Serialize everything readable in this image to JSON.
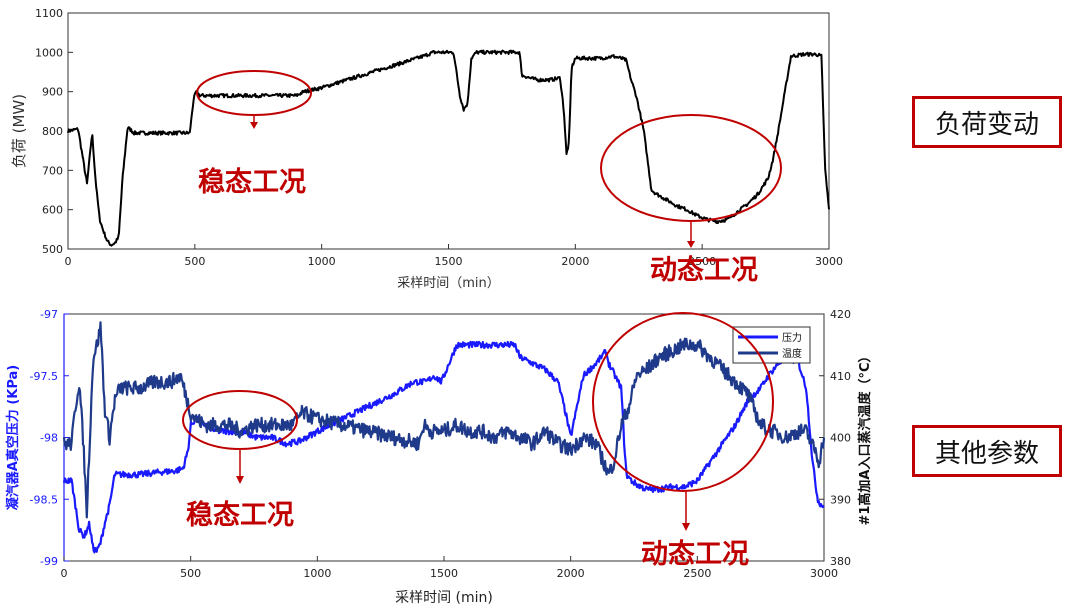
{
  "side_labels": {
    "top": "负荷变动",
    "bottom": "其他参数"
  },
  "colors": {
    "load_line": "#000000",
    "pressure_line": "#1a1aff",
    "temperature_line": "#1f3a8a",
    "annotation": "#c00000"
  },
  "chart_data": [
    {
      "type": "line",
      "ylabel": "负荷 (MW)",
      "xlabel": "采样时间（min）",
      "xlim": [
        0,
        3000
      ],
      "ylim": [
        500,
        1100
      ],
      "x_ticks": [
        0,
        500,
        1000,
        1500,
        2000,
        2500,
        3000
      ],
      "y_ticks": [
        500,
        600,
        700,
        800,
        900,
        1000,
        1100
      ],
      "grid": false,
      "series": [
        {
          "x": [
            0,
            40,
            55,
            75,
            95,
            110,
            125,
            140,
            155,
            170,
            185,
            200,
            215,
            235,
            260,
            320,
            400,
            480,
            495,
            505,
            520,
            560,
            650,
            750,
            850,
            900,
            930,
            1000,
            1200,
            1400,
            1440,
            1480,
            1500,
            1520,
            1545,
            1560,
            1575,
            1590,
            1610,
            1650,
            1700,
            1750,
            1780,
            1790,
            1800,
            1820,
            1850,
            1900,
            1940,
            1955,
            1965,
            1975,
            1985,
            2000,
            2020,
            2050,
            2100,
            2150,
            2180,
            2200,
            2210,
            2220,
            2240,
            2270,
            2290,
            2300,
            2320,
            2360,
            2400,
            2440,
            2480,
            2520,
            2560,
            2600,
            2640,
            2680,
            2720,
            2760,
            2780,
            2800,
            2850,
            2900,
            2950,
            2970,
            2985,
            3000
          ],
          "values": [
            800,
            805,
            745,
            665,
            795,
            665,
            575,
            545,
            520,
            510,
            515,
            530,
            680,
            810,
            795,
            795,
            795,
            795,
            880,
            900,
            890,
            890,
            890,
            890,
            890,
            890,
            900,
            910,
            950,
            990,
            1000,
            1000,
            1000,
            1000,
            890,
            855,
            870,
            985,
            1000,
            1000,
            1000,
            1000,
            1000,
            940,
            940,
            935,
            930,
            930,
            935,
            850,
            740,
            770,
            960,
            985,
            985,
            985,
            985,
            990,
            985,
            980,
            955,
            930,
            890,
            800,
            700,
            650,
            640,
            625,
            610,
            600,
            585,
            575,
            570,
            575,
            595,
            615,
            640,
            680,
            730,
            800,
            990,
            995,
            995,
            990,
            700,
            600
          ]
        }
      ],
      "annotations": [
        {
          "text": "稳态工况"
        },
        {
          "text": "动态工况"
        }
      ]
    },
    {
      "type": "line",
      "ylabel_left": "凝汽器A真空压力 (KPa)",
      "ylabel_right": "#1高加A入口蒸汽温度（°C）",
      "xlabel": "采样时间 (min)",
      "xlim": [
        0,
        3000
      ],
      "ylim_left": [
        -99,
        -97
      ],
      "ylim_right": [
        380,
        420
      ],
      "x_ticks": [
        0,
        500,
        1000,
        1500,
        2000,
        2500,
        3000
      ],
      "y_ticks_left": [
        "-97",
        "-97.5",
        "-98",
        "-98.5",
        "-99"
      ],
      "y_ticks_left_values": [
        -97,
        -97.5,
        -98,
        -98.5,
        -99
      ],
      "y_ticks_right": [
        380,
        390,
        400,
        410,
        420
      ],
      "grid": false,
      "legend_position": "top-right",
      "series": [
        {
          "name": "压力",
          "axis": "left",
          "x": [
            0,
            30,
            45,
            60,
            80,
            100,
            115,
            130,
            145,
            160,
            180,
            200,
            240,
            300,
            380,
            440,
            470,
            490,
            500,
            520,
            560,
            600,
            650,
            700,
            760,
            820,
            880,
            930,
            1000,
            1100,
            1200,
            1300,
            1380,
            1430,
            1460,
            1490,
            1510,
            1530,
            1550,
            1600,
            1700,
            1780,
            1800,
            1850,
            1900,
            1950,
            1980,
            2000,
            2050,
            2100,
            2140,
            2150,
            2200,
            2210,
            2220,
            2240,
            2260,
            2280,
            2300,
            2340,
            2400,
            2450,
            2500,
            2550,
            2600,
            2650,
            2700,
            2750,
            2780,
            2820,
            2860,
            2900,
            2930,
            2955,
            2975,
            2990,
            3000
          ],
          "values": [
            -98.35,
            -98.35,
            -98.55,
            -98.75,
            -98.8,
            -98.7,
            -98.9,
            -98.92,
            -98.85,
            -98.7,
            -98.55,
            -98.3,
            -98.3,
            -98.3,
            -98.28,
            -98.27,
            -98.25,
            -98.1,
            -97.9,
            -97.85,
            -97.9,
            -97.95,
            -97.95,
            -97.95,
            -98.0,
            -98.0,
            -98.05,
            -98.03,
            -97.95,
            -97.85,
            -97.75,
            -97.65,
            -97.55,
            -97.55,
            -97.5,
            -97.55,
            -97.45,
            -97.35,
            -97.25,
            -97.25,
            -97.25,
            -97.25,
            -97.35,
            -97.4,
            -97.45,
            -97.55,
            -97.8,
            -98.0,
            -97.5,
            -97.4,
            -97.3,
            -97.4,
            -97.6,
            -98.0,
            -98.3,
            -98.35,
            -98.38,
            -98.4,
            -98.42,
            -98.42,
            -98.4,
            -98.4,
            -98.35,
            -98.2,
            -98.05,
            -97.9,
            -97.7,
            -97.6,
            -97.5,
            -97.4,
            -97.35,
            -97.4,
            -97.6,
            -98.2,
            -98.5,
            -98.55,
            -98.55
          ]
        },
        {
          "name": "温度",
          "axis": "right",
          "x": [
            0,
            30,
            45,
            60,
            75,
            90,
            100,
            115,
            130,
            145,
            160,
            180,
            200,
            220,
            260,
            300,
            360,
            420,
            460,
            480,
            500,
            520,
            560,
            600,
            650,
            700,
            750,
            800,
            850,
            900,
            920,
            940,
            1000,
            1100,
            1200,
            1300,
            1400,
            1420,
            1450,
            1500,
            1550,
            1600,
            1650,
            1700,
            1750,
            1800,
            1850,
            1900,
            1950,
            2000,
            2050,
            2100,
            2130,
            2150,
            2170,
            2200,
            2230,
            2260,
            2300,
            2350,
            2400,
            2450,
            2500,
            2550,
            2600,
            2650,
            2700,
            2750,
            2800,
            2850,
            2900,
            2930,
            2950,
            2965,
            2980,
            3000
          ],
          "values": [
            399,
            399,
            405,
            409,
            400,
            388,
            398,
            413,
            415,
            418,
            405,
            400,
            406,
            408,
            408,
            408,
            409,
            409,
            410,
            407,
            404,
            403,
            402,
            402,
            402,
            401,
            402,
            402,
            402,
            402,
            403,
            404,
            403,
            402,
            401,
            400,
            399,
            402,
            401,
            401,
            402,
            401,
            401,
            400,
            401,
            400,
            399,
            401,
            399,
            398,
            400,
            399,
            396,
            394,
            396,
            402,
            405,
            410,
            411,
            413,
            414,
            415,
            415,
            413,
            411,
            409,
            407,
            402,
            401,
            400,
            401,
            401,
            399,
            398,
            396,
            400
          ]
        }
      ],
      "annotations": [
        {
          "text": "稳态工况"
        },
        {
          "text": "动态工况"
        }
      ]
    }
  ]
}
